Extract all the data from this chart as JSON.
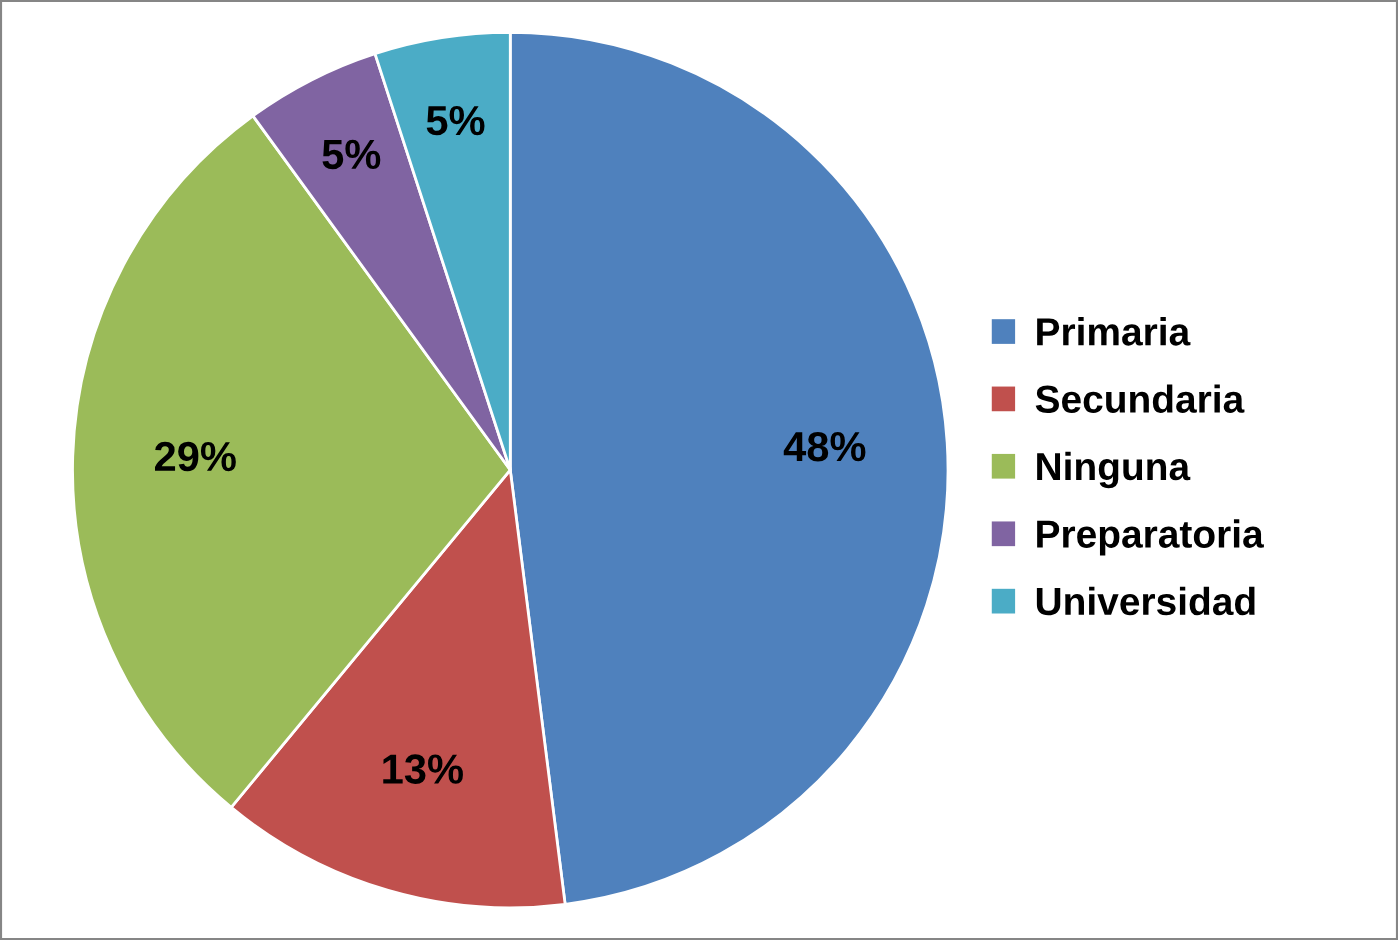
{
  "chart_data": {
    "type": "pie",
    "categories": [
      "Primaria",
      "Secundaria",
      "Ninguna",
      "Preparatoria",
      "Universidad"
    ],
    "values": [
      48,
      13,
      29,
      5,
      5
    ],
    "colors": [
      "#4f81bd",
      "#c0504d",
      "#9bbb59",
      "#8064a2",
      "#4bacc6"
    ],
    "value_labels": [
      "48%",
      "13%",
      "29%",
      "5%",
      "5%"
    ],
    "legend": "right"
  }
}
